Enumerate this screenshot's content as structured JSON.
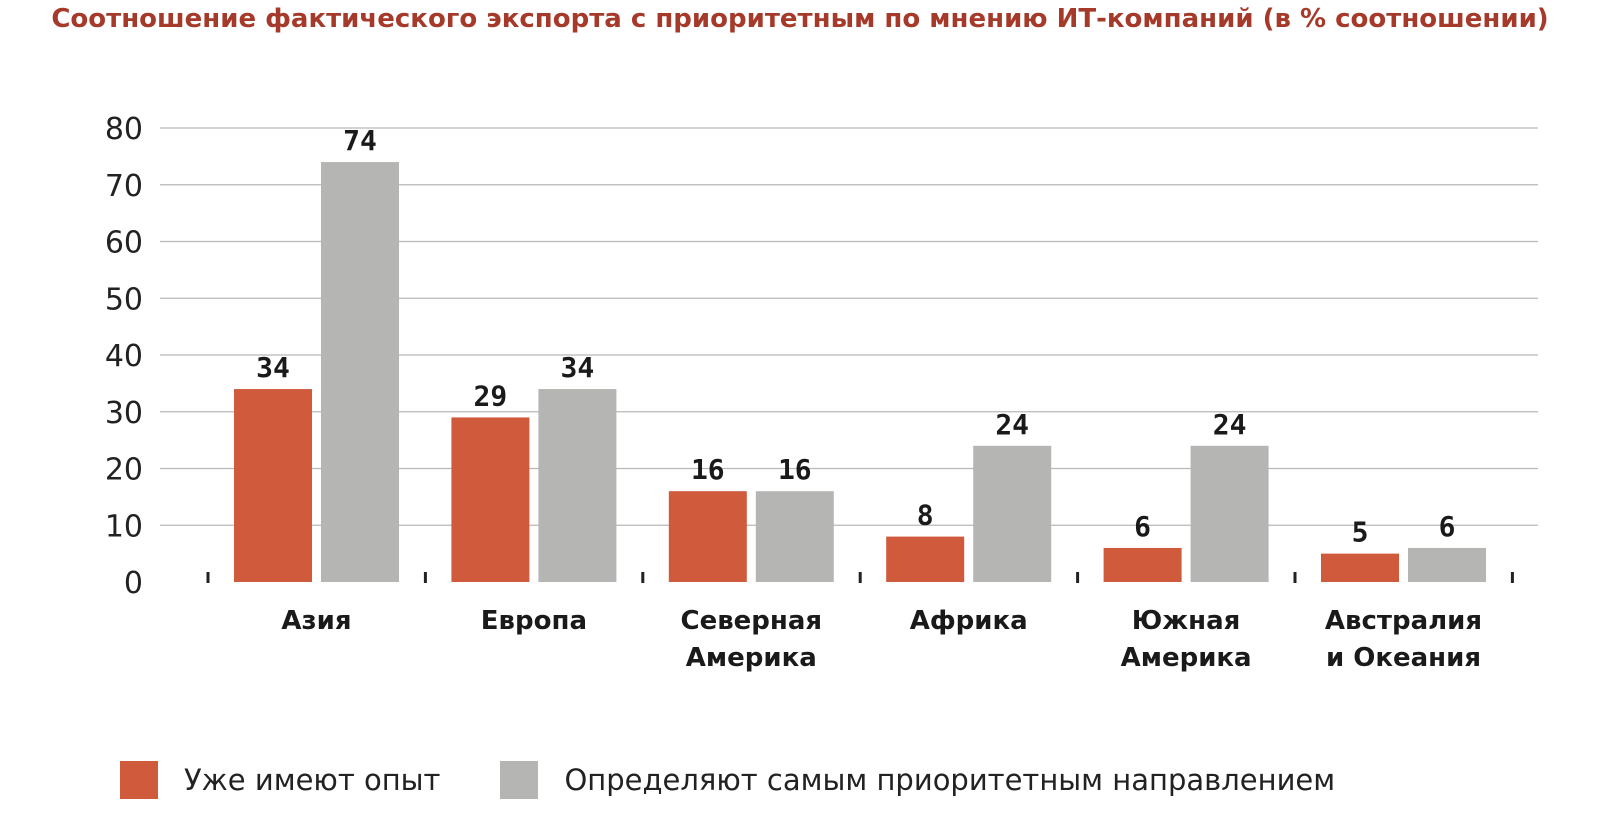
{
  "chart_data": {
    "type": "bar",
    "title": "Соотношение фактического экспорта с приоритетным по мнению ИТ-компаний (в % соотношении)",
    "categories": [
      [
        "Азия"
      ],
      [
        "Европа"
      ],
      [
        "Северная",
        "Америка"
      ],
      [
        "Африка"
      ],
      [
        "Южная",
        "Америка"
      ],
      [
        "Австралия",
        "и Океания"
      ]
    ],
    "series": [
      {
        "name": "Уже имеют опыт",
        "color": "#cf5a3c",
        "values": [
          34,
          29,
          16,
          8,
          6,
          5
        ]
      },
      {
        "name": "Определяют самым приоритетным направлением",
        "color": "#b5b6b3",
        "values": [
          74,
          34,
          16,
          24,
          24,
          6
        ]
      }
    ],
    "ylim": [
      0,
      80
    ],
    "yticks": [
      "0",
      "10",
      "20",
      "30",
      "40",
      "50",
      "60",
      "70",
      "80"
    ],
    "xlabel": "",
    "ylabel": "",
    "grid": true,
    "legend": "bottom"
  }
}
